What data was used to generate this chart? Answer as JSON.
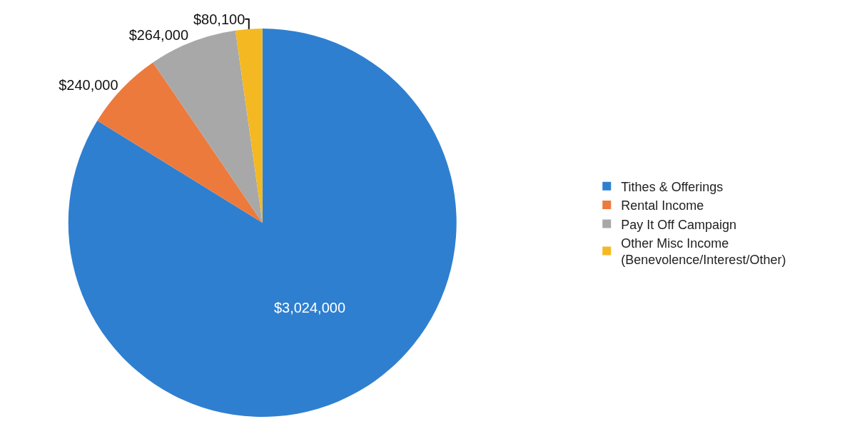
{
  "chart_data": {
    "type": "pie",
    "categories": [
      "Tithes & Offerings",
      "Rental Income",
      "Pay It Off Campaign",
      "Other Misc Income\n(Benevolence/Interest/Other)"
    ],
    "values": [
      3024000,
      240000,
      264000,
      80100
    ],
    "value_labels": [
      "$3,024,000",
      "$240,000",
      "$264,000",
      "$80,100"
    ],
    "colors": [
      "#2f7fd0",
      "#ec7a3c",
      "#a8a8a8",
      "#f4b823"
    ],
    "legend": "right"
  }
}
